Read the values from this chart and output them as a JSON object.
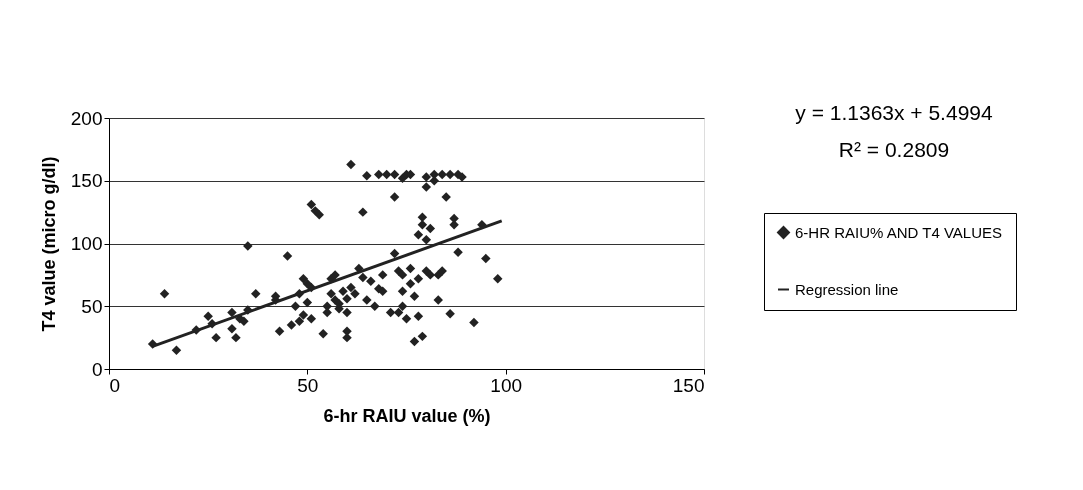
{
  "chart_data": {
    "type": "scatter",
    "xlabel": "6-hr RAIU value (%)",
    "ylabel": "T4 value (micro g/dl)",
    "xlim": [
      0,
      150
    ],
    "xticks": [
      0,
      50,
      100,
      150
    ],
    "ylim": [
      0,
      200
    ],
    "yticks": [
      0,
      50,
      100,
      150,
      200
    ],
    "grid": "y",
    "legend": "right",
    "annotations": [
      "y = 1.1363x + 5.4994",
      "R² = 0.2809"
    ],
    "series": [
      {
        "name": "6-HR RAIU% AND T4 VALUES",
        "color": "#222222",
        "marker": "diamond",
        "x": [
          11,
          14,
          17,
          22,
          25,
          26,
          27,
          31,
          31,
          32,
          33,
          34,
          35,
          35,
          37,
          42,
          42,
          43,
          45,
          46,
          47,
          48,
          48,
          49,
          49,
          50,
          50,
          51,
          51,
          51,
          52,
          53,
          54,
          55,
          55,
          56,
          56,
          57,
          57,
          58,
          58,
          59,
          60,
          60,
          60,
          60,
          61,
          61,
          62,
          63,
          64,
          64,
          65,
          65,
          66,
          67,
          68,
          68,
          69,
          69,
          70,
          71,
          72,
          72,
          72,
          73,
          73,
          74,
          74,
          74,
          74,
          75,
          75,
          76,
          76,
          76,
          77,
          77,
          78,
          78,
          78,
          79,
          79,
          79,
          80,
          80,
          80,
          80,
          81,
          81,
          82,
          82,
          83,
          83,
          84,
          84,
          85,
          86,
          86,
          87,
          87,
          88,
          88,
          89,
          92,
          94,
          95,
          98
        ],
        "values": [
          20,
          60,
          15,
          31,
          42,
          36,
          25,
          45,
          32,
          25,
          40,
          38,
          47,
          98,
          60,
          55,
          58,
          30,
          90,
          35,
          50,
          60,
          38,
          72,
          43,
          68,
          53,
          40,
          65,
          131,
          126,
          123,
          28,
          50,
          45,
          72,
          60,
          75,
          55,
          52,
          48,
          62,
          30,
          25,
          56,
          45,
          65,
          163,
          60,
          80,
          73,
          125,
          154,
          55,
          70,
          50,
          64,
          155,
          75,
          62,
          155,
          45,
          137,
          155,
          92,
          78,
          45,
          75,
          152,
          62,
          50,
          155,
          40,
          68,
          155,
          80,
          22,
          58,
          42,
          72,
          107,
          121,
          115,
          26,
          78,
          103,
          153,
          145,
          75,
          112,
          155,
          150,
          75,
          55,
          78,
          155,
          137,
          155,
          44,
          120,
          115,
          155,
          93,
          153,
          37,
          115,
          88,
          72
        ]
      },
      {
        "name": "Regression line",
        "color": "#222222",
        "type": "line",
        "line_style": "solid",
        "marker": "none",
        "x": [
          11,
          99
        ],
        "values": [
          18.0,
          118.0
        ]
      }
    ]
  }
}
